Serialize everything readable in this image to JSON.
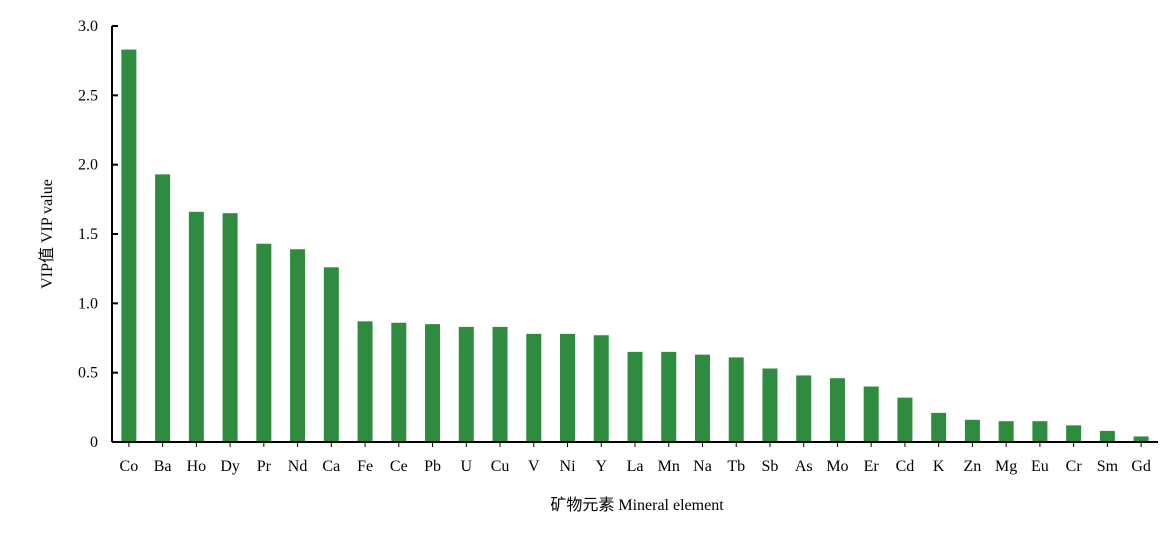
{
  "chart_data": {
    "type": "bar",
    "xlabel": "矿物元素 Mineral element",
    "ylabel": "VIP值 VIP value",
    "ylim": [
      0,
      3.0
    ],
    "yticks": [
      "0",
      "0.5",
      "1.0",
      "1.5",
      "2.0",
      "2.5",
      "3.0"
    ],
    "grid": false,
    "bar_color": "#2e8b40",
    "categories": [
      "Co",
      "Ba",
      "Ho",
      "Dy",
      "Pr",
      "Nd",
      "Ca",
      "Fe",
      "Ce",
      "Pb",
      "U",
      "Cu",
      "V",
      "Ni",
      "Y",
      "La",
      "Mn",
      "Na",
      "Tb",
      "Sb",
      "As",
      "Mo",
      "Er",
      "Cd",
      "K",
      "Zn",
      "Mg",
      "Eu",
      "Cr",
      "Sm",
      "Gd"
    ],
    "values": [
      2.83,
      1.93,
      1.66,
      1.65,
      1.43,
      1.39,
      1.26,
      0.87,
      0.86,
      0.85,
      0.83,
      0.83,
      0.78,
      0.78,
      0.77,
      0.65,
      0.65,
      0.63,
      0.61,
      0.53,
      0.48,
      0.46,
      0.4,
      0.32,
      0.21,
      0.16,
      0.15,
      0.15,
      0.12,
      0.08,
      0.04
    ]
  }
}
